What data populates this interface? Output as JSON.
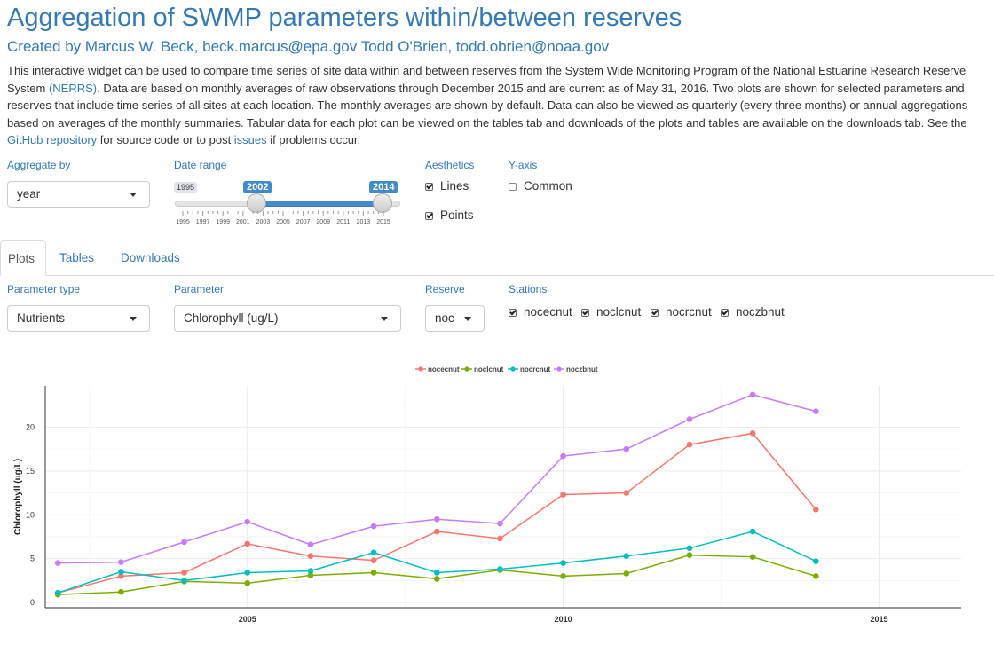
{
  "header": {
    "title": "Aggregation of SWMP parameters within/between reserves",
    "created_by": "Created by Marcus W. Beck,",
    "email1": "beck.marcus@epa.gov",
    "author2": "Todd O'Brien,",
    "email2": "todd.obrien@noaa.gov"
  },
  "description": {
    "part1": "This interactive widget can be used to compare time series of site data within and between reserves from the System Wide Monitoring Program of the National Estuarine Research Reserve System ",
    "nerrs_link": "(NERRS).",
    "part2": " Data are based on monthly averages of raw observations through December 2015 and are current as of May 31, 2016. Two plots are shown for selected parameters and reserves that include time series of all sites at each location. The monthly averages are shown by default. Data can also be viewed as quarterly (every three months) or annual aggregations based on averages of the monthly summaries. Tabular data for each plot can be viewed on the tables tab and downloads of the plots and tables are available on the downloads tab. See the ",
    "github_link": "GitHub repository",
    "part3": " for source code or to post ",
    "issues_link": "issues",
    "part4": " if problems occur."
  },
  "controls": {
    "aggregate_label": "Aggregate by",
    "aggregate_value": "year",
    "date_range_label": "Date range",
    "slider_min": "1995",
    "slider_from": "2002",
    "slider_to": "2014",
    "slider_ticks": [
      "1995",
      "1997",
      "1999",
      "2001",
      "2003",
      "2005",
      "2007",
      "2009",
      "2011",
      "2013",
      "2015"
    ],
    "aesthetics_label": "Aesthetics",
    "lines_label": "Lines",
    "lines_checked": true,
    "points_label": "Points",
    "points_checked": true,
    "yaxis_label": "Y-axis",
    "common_label": "Common",
    "common_checked": false
  },
  "tabs": [
    {
      "label": "Plots",
      "active": true
    },
    {
      "label": "Tables",
      "active": false
    },
    {
      "label": "Downloads",
      "active": false
    }
  ],
  "plot_controls": {
    "param_type_label": "Parameter type",
    "param_type_value": "Nutrients",
    "parameter_label": "Parameter",
    "parameter_value": "Chlorophyll (ug/L)",
    "reserve_label": "Reserve",
    "reserve_value": "noc",
    "stations_label": "Stations",
    "stations": [
      {
        "label": "nocecnut",
        "checked": true
      },
      {
        "label": "noclcnut",
        "checked": true
      },
      {
        "label": "nocrcnut",
        "checked": true
      },
      {
        "label": "noczbnut",
        "checked": true
      }
    ]
  },
  "chart_data": {
    "type": "line",
    "ylabel": "Chlorophyll (ug/L)",
    "xlabel": "",
    "x": [
      2002,
      2003,
      2004,
      2005,
      2006,
      2007,
      2008,
      2009,
      2010,
      2011,
      2012,
      2013,
      2014
    ],
    "xlim": [
      2001.8,
      2016.3
    ],
    "ylim": [
      -0.6,
      24.7
    ],
    "xticks": [
      2005,
      2010,
      2015
    ],
    "yticks": [
      0,
      5,
      10,
      15,
      20
    ],
    "legend_position": "top",
    "grid": true,
    "series": [
      {
        "name": "nocecnut",
        "color": "#f8766d",
        "values": [
          1.1,
          3.0,
          3.4,
          6.7,
          5.3,
          4.8,
          8.1,
          7.3,
          12.3,
          12.5,
          18.0,
          19.3,
          10.6
        ]
      },
      {
        "name": "noclcnut",
        "color": "#7cae00",
        "values": [
          0.9,
          1.2,
          2.4,
          2.2,
          3.1,
          3.4,
          2.7,
          3.7,
          3.0,
          3.3,
          5.4,
          5.2,
          3.0
        ]
      },
      {
        "name": "nocrcnut",
        "color": "#00bfc4",
        "values": [
          1.1,
          3.5,
          2.5,
          3.4,
          3.6,
          5.7,
          3.4,
          3.8,
          4.5,
          5.3,
          6.2,
          8.1,
          4.7
        ]
      },
      {
        "name": "noczbnut",
        "color": "#c77cff",
        "values": [
          4.5,
          4.6,
          6.9,
          9.2,
          6.6,
          8.7,
          9.5,
          9.0,
          16.7,
          17.5,
          20.9,
          23.7,
          21.8
        ]
      }
    ]
  }
}
